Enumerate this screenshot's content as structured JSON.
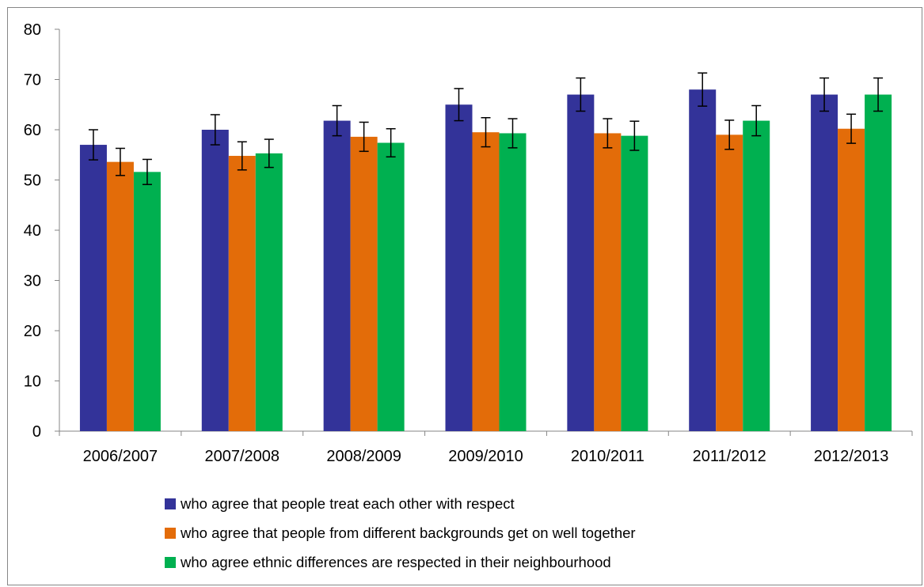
{
  "chart_data": {
    "type": "bar",
    "categories": [
      "2006/2007",
      "2007/2008",
      "2008/2009",
      "2009/2010",
      "2010/2011",
      "2011/2012",
      "2012/2013"
    ],
    "series": [
      {
        "name": "who agree that people treat each other with respect",
        "color": "#333399",
        "values": [
          57,
          60,
          61.8,
          65,
          67,
          68,
          67
        ],
        "error": [
          3,
          3,
          3,
          3.2,
          3.3,
          3.3,
          3.3
        ]
      },
      {
        "name": "who agree that people from different backgrounds get on well together",
        "color": "#E36C09",
        "values": [
          53.6,
          54.8,
          58.6,
          59.5,
          59.3,
          59,
          60.2
        ],
        "error": [
          2.7,
          2.8,
          2.9,
          2.9,
          2.9,
          2.9,
          2.9
        ]
      },
      {
        "name": "who agree ethnic differences are respected in their neighbourhood",
        "color": "#00B050",
        "values": [
          51.6,
          55.3,
          57.4,
          59.3,
          58.8,
          61.8,
          67
        ],
        "error": [
          2.5,
          2.8,
          2.8,
          2.9,
          2.9,
          3,
          3.3
        ]
      }
    ],
    "ylim": [
      0,
      80
    ],
    "yticks": [
      0,
      10,
      20,
      30,
      40,
      50,
      60,
      70,
      80
    ],
    "grid": false,
    "legend_position": "bottom"
  }
}
